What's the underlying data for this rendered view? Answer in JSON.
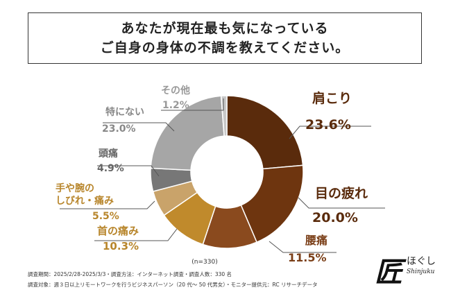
{
  "title": {
    "line1": "あなたが現在最も気になっている",
    "line2": "ご自身の身体の不調を教えてください。"
  },
  "chart_data": {
    "type": "pie",
    "donut": true,
    "n_label": "(n=330)",
    "slices": [
      {
        "label": "肩こり",
        "value": 23.6,
        "display": "23.6%",
        "color": "#5a2b0c",
        "text_color": "#5a2b0c"
      },
      {
        "label": "目の疲れ",
        "value": 20.0,
        "display": "20.0%",
        "color": "#6e350f",
        "text_color": "#5a2b0c"
      },
      {
        "label": "腰痛",
        "value": 11.5,
        "display": "11.5%",
        "color": "#8a4a1e",
        "text_color": "#7a3e17"
      },
      {
        "label": "首の痛み",
        "value": 10.3,
        "display": "10.3%",
        "color": "#c08a2c",
        "text_color": "#b8862c"
      },
      {
        "label": "手や腕の\nしびれ・痛み",
        "value": 5.5,
        "display": "5.5%",
        "color": "#c9a36a",
        "text_color": "#b8862c"
      },
      {
        "label": "頭痛",
        "value": 4.9,
        "display": "4.9%",
        "color": "#777777",
        "text_color": "#666666"
      },
      {
        "label": "特にない",
        "value": 23.0,
        "display": "23.0%",
        "color": "#a6a6a6",
        "text_color": "#888888"
      },
      {
        "label": "その他",
        "value": 1.2,
        "display": "1.2%",
        "color": "#c8c8c8",
        "text_color": "#999999"
      }
    ]
  },
  "footnotes": {
    "line1": "調査期間：2025/2/28-2025/3/3・調査方法：インターネット調査・調査人数：330 名",
    "line2": "調査対象：週３日以上リモートワークを行うビジネスパーソン（20 代〜 50 代男女）・モニター提供元：RC リサーチデータ"
  },
  "logo": {
    "kanji": "匠",
    "kana": "ほぐし",
    "en": "Shinjuku"
  }
}
